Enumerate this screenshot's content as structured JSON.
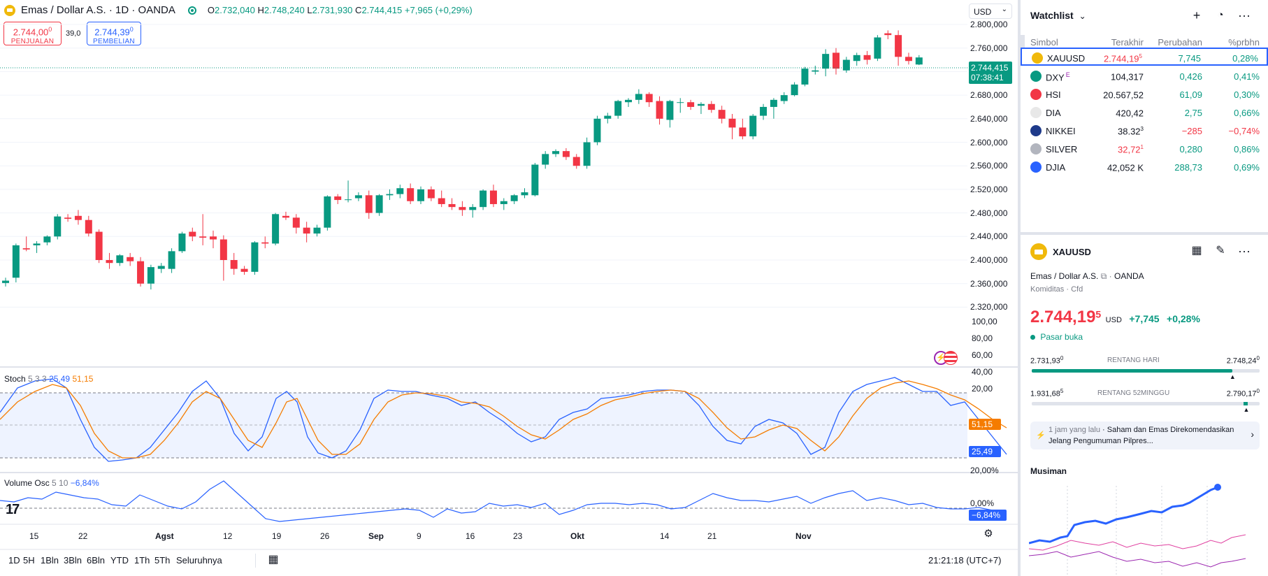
{
  "header": {
    "title": "Emas / Dollar A.S. · 1D · OANDA",
    "o_label": "O",
    "o": "2.732,040",
    "h_label": "H",
    "h": "2.748,240",
    "l_label": "L",
    "l": "2.731,930",
    "c_label": "C",
    "c": "2.744,415",
    "change": "+7,965 (+0,29%)",
    "sell_price": "2.744,00",
    "sell_sup": "0",
    "sell_label": "PENJUALAN",
    "spread": "39,0",
    "buy_price": "2.744,39",
    "buy_sup": "0",
    "buy_label": "PEMBELIAN",
    "currency": "USD"
  },
  "price_axis": {
    "ticks": [
      "2.800,000",
      "2.760,000",
      "2.720,000",
      "2.680,000",
      "2.640,000",
      "2.600,000",
      "2.560,000",
      "2.520,000",
      "2.480,000",
      "2.440,000",
      "2.400,000",
      "2.360,000",
      "2.320,000"
    ],
    "last_price": "2.744,415",
    "countdown": "07:38:41"
  },
  "stoch": {
    "name": "Stoch",
    "params": "5 3 3",
    "k": "25,49",
    "d": "51,15",
    "axis": [
      "100,00",
      "80,00",
      "60,00",
      "40,00",
      "20,00"
    ],
    "k_tag": "25,49",
    "d_tag": "51,15"
  },
  "volosc": {
    "name": "Volume Osc",
    "params": "5 10",
    "value": "−6,84%",
    "axis": [
      "20,00%",
      "0,00%"
    ],
    "tag": "−6,84%"
  },
  "time_axis": [
    "15",
    "22",
    "Agst",
    "12",
    "19",
    "26",
    "Sep",
    "9",
    "16",
    "23",
    "Okt",
    "14",
    "21",
    "Nov"
  ],
  "bottom_bar": {
    "ranges": [
      "1D",
      "5H",
      "1Bln",
      "3Bln",
      "6Bln",
      "YTD",
      "1Th",
      "5Th",
      "Seluruhnya"
    ],
    "clock": "21:21:18 (UTC+7)"
  },
  "watchlist": {
    "title": "Watchlist",
    "columns": [
      "Simbol",
      "Terakhir",
      "Perubahan",
      "%prbhn"
    ],
    "rows": [
      {
        "symbol": "XAUUSD",
        "last": "2.744,19",
        "last_sup": "5",
        "change": "7,745",
        "pct": "0,28%",
        "icon": "gold-icon",
        "icon_color": "#f0b90b"
      },
      {
        "symbol": "DXY",
        "last": "104,317",
        "last_sup": "",
        "change": "0,426",
        "pct": "0,41%",
        "icon": "dollar-icon",
        "icon_color": "#089981"
      },
      {
        "symbol": "HSI",
        "last": "20.567,52",
        "last_sup": "",
        "change": "61,09",
        "pct": "0,30%",
        "icon": "hsi-icon",
        "icon_color": "#f23645"
      },
      {
        "symbol": "DIA",
        "last": "420,42",
        "last_sup": "",
        "change": "2,75",
        "pct": "0,66%",
        "icon": "dia-icon",
        "icon_color": "#e8e8e8"
      },
      {
        "symbol": "NIKKEI",
        "last": "38.32",
        "last_sup": "3",
        "change": "−285",
        "pct": "−0,74%",
        "icon": "nikkei-icon",
        "icon_color": "#1e3a8a"
      },
      {
        "symbol": "SILVER",
        "last": "32,72",
        "last_sup": "1",
        "change": "0,280",
        "pct": "0,86%",
        "icon": "silver-icon",
        "icon_color": "#b2b5be"
      },
      {
        "symbol": "DJIA",
        "last": "42,052 K",
        "last_sup": "",
        "change": "288,73",
        "pct": "0,69%",
        "icon": "us-flag-icon",
        "icon_color": "#2962ff"
      }
    ],
    "dxy_badge": "E"
  },
  "details": {
    "symbol": "XAUUSD",
    "name": "Emas / Dollar A.S.",
    "exchange": "OANDA",
    "category": "Komiditas",
    "type": "Cfd",
    "price": "2.744,19",
    "price_sup": "5",
    "currency": "USD",
    "change": "+7,745",
    "pct": "+0,28%",
    "status": "Pasar buka",
    "day_low": "2.731,93",
    "day_low_sup": "0",
    "day_range_label": "RENTANG HARI",
    "day_high": "2.748,24",
    "day_high_sup": "0",
    "w52_low": "1.931,68",
    "w52_low_sup": "5",
    "w52_label": "RENTANG 52MINGGU",
    "w52_high": "2.790,17",
    "w52_high_sup": "0",
    "day_progress": 0.88,
    "w52_progress": 0.94,
    "news_time": "1 jam yang lalu",
    "news_text": "Saham dan Emas Direkomendasikan Jelang Pengumuman Pilpres...",
    "seasonal_title": "Musiman"
  },
  "colors": {
    "up": "#089981",
    "down": "#f23645",
    "blue": "#2962ff",
    "orange": "#f57c00"
  },
  "chart_data": {
    "type": "candlestick",
    "candles": [
      [
        2361,
        2370,
        2355,
        2365
      ],
      [
        2370,
        2428,
        2362,
        2425
      ],
      [
        2420,
        2440,
        2415,
        2418
      ],
      [
        2425,
        2432,
        2412,
        2428
      ],
      [
        2430,
        2442,
        2425,
        2440
      ],
      [
        2440,
        2478,
        2435,
        2474
      ],
      [
        2472,
        2478,
        2465,
        2470
      ],
      [
        2475,
        2485,
        2460,
        2468
      ],
      [
        2468,
        2475,
        2440,
        2445
      ],
      [
        2448,
        2452,
        2395,
        2400
      ],
      [
        2400,
        2412,
        2385,
        2395
      ],
      [
        2395,
        2410,
        2390,
        2408
      ],
      [
        2405,
        2412,
        2390,
        2398
      ],
      [
        2398,
        2405,
        2355,
        2360
      ],
      [
        2360,
        2392,
        2350,
        2388
      ],
      [
        2385,
        2395,
        2378,
        2390
      ],
      [
        2385,
        2420,
        2378,
        2415
      ],
      [
        2415,
        2448,
        2412,
        2445
      ],
      [
        2448,
        2455,
        2432,
        2440
      ],
      [
        2440,
        2478,
        2425,
        2438
      ],
      [
        2440,
        2450,
        2420,
        2435
      ],
      [
        2435,
        2442,
        2365,
        2400
      ],
      [
        2400,
        2412,
        2375,
        2385
      ],
      [
        2385,
        2390,
        2375,
        2380
      ],
      [
        2380,
        2432,
        2375,
        2430
      ],
      [
        2430,
        2440,
        2420,
        2428
      ],
      [
        2428,
        2480,
        2425,
        2478
      ],
      [
        2475,
        2482,
        2468,
        2472
      ],
      [
        2472,
        2478,
        2445,
        2455
      ],
      [
        2455,
        2465,
        2430,
        2445
      ],
      [
        2445,
        2460,
        2440,
        2455
      ],
      [
        2455,
        2510,
        2450,
        2508
      ],
      [
        2508,
        2512,
        2495,
        2502
      ],
      [
        2502,
        2535,
        2498,
        2503
      ],
      [
        2505,
        2515,
        2500,
        2510
      ],
      [
        2510,
        2518,
        2470,
        2480
      ],
      [
        2480,
        2512,
        2475,
        2510
      ],
      [
        2510,
        2520,
        2502,
        2512
      ],
      [
        2512,
        2528,
        2505,
        2522
      ],
      [
        2522,
        2530,
        2495,
        2500
      ],
      [
        2500,
        2525,
        2495,
        2520
      ],
      [
        2520,
        2525,
        2500,
        2505
      ],
      [
        2505,
        2518,
        2490,
        2495
      ],
      [
        2495,
        2505,
        2485,
        2490
      ],
      [
        2490,
        2500,
        2475,
        2485
      ],
      [
        2485,
        2495,
        2472,
        2490
      ],
      [
        2490,
        2520,
        2485,
        2518
      ],
      [
        2518,
        2528,
        2490,
        2495
      ],
      [
        2495,
        2505,
        2485,
        2500
      ],
      [
        2500,
        2512,
        2495,
        2510
      ],
      [
        2510,
        2522,
        2505,
        2515
      ],
      [
        2510,
        2565,
        2508,
        2562
      ],
      [
        2562,
        2585,
        2555,
        2580
      ],
      [
        2580,
        2588,
        2575,
        2585
      ],
      [
        2585,
        2590,
        2570,
        2575
      ],
      [
        2575,
        2580,
        2555,
        2560
      ],
      [
        2560,
        2608,
        2555,
        2600
      ],
      [
        2600,
        2645,
        2595,
        2640
      ],
      [
        2640,
        2650,
        2632,
        2645
      ],
      [
        2645,
        2672,
        2640,
        2670
      ],
      [
        2668,
        2675,
        2660,
        2672
      ],
      [
        2672,
        2690,
        2665,
        2682
      ],
      [
        2682,
        2685,
        2660,
        2668
      ],
      [
        2670,
        2678,
        2630,
        2640
      ],
      [
        2638,
        2672,
        2625,
        2670
      ],
      [
        2668,
        2675,
        2650,
        2668
      ],
      [
        2668,
        2672,
        2655,
        2660
      ],
      [
        2662,
        2668,
        2648,
        2665
      ],
      [
        2665,
        2670,
        2650,
        2655
      ],
      [
        2655,
        2662,
        2632,
        2640
      ],
      [
        2640,
        2648,
        2605,
        2625
      ],
      [
        2625,
        2640,
        2605,
        2610
      ],
      [
        2610,
        2648,
        2605,
        2645
      ],
      [
        2645,
        2665,
        2638,
        2660
      ],
      [
        2660,
        2675,
        2640,
        2672
      ],
      [
        2670,
        2685,
        2665,
        2680
      ],
      [
        2680,
        2702,
        2678,
        2698
      ],
      [
        2698,
        2728,
        2695,
        2725
      ],
      [
        2720,
        2730,
        2715,
        2722
      ],
      [
        2725,
        2758,
        2712,
        2750
      ],
      [
        2752,
        2760,
        2715,
        2725
      ],
      [
        2722,
        2745,
        2718,
        2740
      ],
      [
        2738,
        2752,
        2730,
        2748
      ],
      [
        2748,
        2755,
        2732,
        2740
      ],
      [
        2742,
        2782,
        2738,
        2778
      ],
      [
        2785,
        2790,
        2775,
        2782
      ],
      [
        2782,
        2790,
        2730,
        2745
      ],
      [
        2745,
        2752,
        2732,
        2738
      ],
      [
        2732,
        2748,
        2731,
        2744
      ]
    ]
  }
}
